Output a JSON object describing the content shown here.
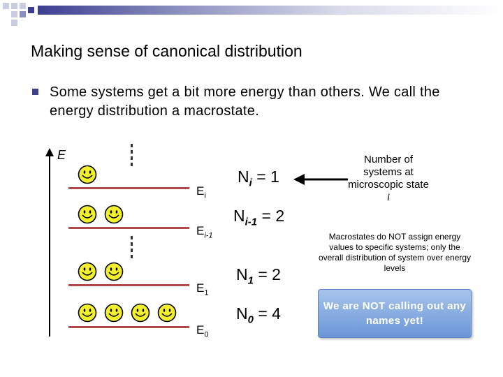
{
  "slide": {
    "title": "Making sense of canonical distribution",
    "bullet": "Some systems get a bit more energy than others. We call the energy distribution a macrostate."
  },
  "diagram": {
    "axis_label": "E",
    "levels": [
      {
        "sym": "E",
        "sub": "i",
        "count_sym": "N",
        "count_sub": "i",
        "count_value": "= 1",
        "smileys": 1
      },
      {
        "sym": "E",
        "sub": "i-1",
        "count_sym": "N",
        "count_sub": "i-1",
        "count_value": "= 2",
        "smileys": 2
      },
      {
        "sym": "E",
        "sub": "1",
        "count_sym": "N",
        "count_sub": "1",
        "count_value": "= 2",
        "smileys": 2
      },
      {
        "sym": "E",
        "sub": "0",
        "count_sym": "N",
        "count_sub": "0",
        "count_value": "= 4",
        "smileys": 4
      }
    ],
    "arrow_note": "Number of systems at microscopic state",
    "arrow_note_var": "i",
    "macrostate_note": "Macrostates do NOT assign energy values to specific systems; only the overall distribution of system over energy levels",
    "callout": "We are NOT calling out any names yet!",
    "colors": {
      "level_line": "#b04a4a",
      "smiley_face": "#f2f02e",
      "callout": "#7fa5de",
      "bullet": "#3c3f8a"
    }
  }
}
